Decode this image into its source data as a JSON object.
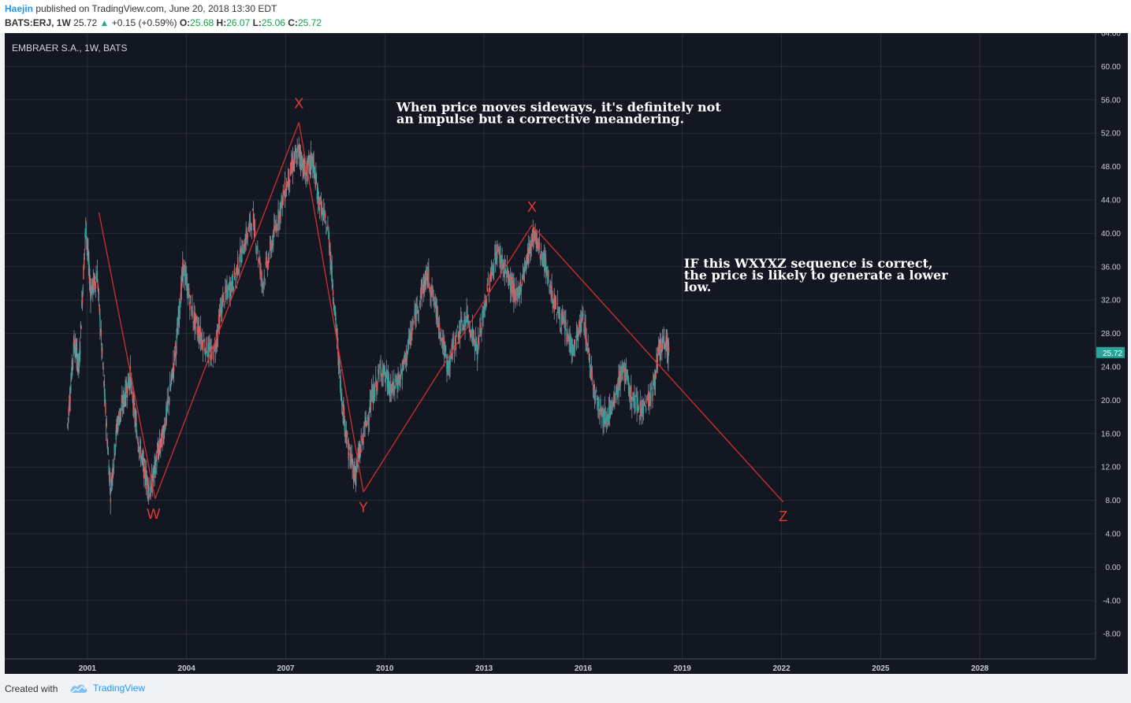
{
  "header": {
    "author": "Haejin",
    "published": "published on TradingView.com, June 20, 2018 13:30 EDT",
    "symbol": "BATS:ERJ, 1W",
    "last": "25.72",
    "change": "+0.15 (+0.59%)",
    "o_label": "O:",
    "o_value": "25.68",
    "h_label": "H:",
    "h_value": "26.07",
    "l_label": "L:",
    "l_value": "25.06",
    "c_label": "C:",
    "c_value": "25.72"
  },
  "footer": {
    "created": "Created with",
    "brand": "TradingView"
  },
  "colors": {
    "background": "#131722",
    "grid": "#2a2e39",
    "line": "#d32f2f",
    "label": "#e53935",
    "up": "#26a69a",
    "down": "#ef5350",
    "price_tag": "#26a69a"
  },
  "chart_data": {
    "type": "line",
    "title": "EMBRAER S.A., 1W, BATS",
    "y_ticks": [
      "64.00",
      "60.00",
      "56.00",
      "52.00",
      "48.00",
      "44.00",
      "40.00",
      "36.00",
      "32.00",
      "28.00",
      "24.00",
      "20.00",
      "16.00",
      "12.00",
      "8.00",
      "4.00",
      "0.00",
      "-4.00",
      "-8.00"
    ],
    "x_ticks": [
      "2001",
      "2004",
      "2007",
      "2010",
      "2013",
      "2016",
      "2019",
      "2022",
      "2025",
      "2028"
    ],
    "ylim": [
      -11,
      64
    ],
    "xlim": [
      1998.5,
      2031.5
    ],
    "last_price": "25.72",
    "price_series": [
      {
        "x": 2000.4,
        "y": 17
      },
      {
        "x": 2000.6,
        "y": 27
      },
      {
        "x": 2000.75,
        "y": 24
      },
      {
        "x": 2000.95,
        "y": 41
      },
      {
        "x": 2001.1,
        "y": 33
      },
      {
        "x": 2001.3,
        "y": 35
      },
      {
        "x": 2001.5,
        "y": 22
      },
      {
        "x": 2001.7,
        "y": 9
      },
      {
        "x": 2001.9,
        "y": 17
      },
      {
        "x": 2002.1,
        "y": 20
      },
      {
        "x": 2002.3,
        "y": 23
      },
      {
        "x": 2002.5,
        "y": 16
      },
      {
        "x": 2002.7,
        "y": 12
      },
      {
        "x": 2002.9,
        "y": 9
      },
      {
        "x": 2003.1,
        "y": 13
      },
      {
        "x": 2003.3,
        "y": 16
      },
      {
        "x": 2003.5,
        "y": 21
      },
      {
        "x": 2003.7,
        "y": 27
      },
      {
        "x": 2003.9,
        "y": 36
      },
      {
        "x": 2004.2,
        "y": 30
      },
      {
        "x": 2004.5,
        "y": 27
      },
      {
        "x": 2004.8,
        "y": 25
      },
      {
        "x": 2005.1,
        "y": 32
      },
      {
        "x": 2005.4,
        "y": 34
      },
      {
        "x": 2005.7,
        "y": 38
      },
      {
        "x": 2006.0,
        "y": 42
      },
      {
        "x": 2006.3,
        "y": 34
      },
      {
        "x": 2006.6,
        "y": 39
      },
      {
        "x": 2006.9,
        "y": 44
      },
      {
        "x": 2007.2,
        "y": 48
      },
      {
        "x": 2007.4,
        "y": 50
      },
      {
        "x": 2007.6,
        "y": 47
      },
      {
        "x": 2007.8,
        "y": 49
      },
      {
        "x": 2008.0,
        "y": 44
      },
      {
        "x": 2008.3,
        "y": 40
      },
      {
        "x": 2008.5,
        "y": 30
      },
      {
        "x": 2008.7,
        "y": 20
      },
      {
        "x": 2008.9,
        "y": 14
      },
      {
        "x": 2009.1,
        "y": 11
      },
      {
        "x": 2009.3,
        "y": 15
      },
      {
        "x": 2009.6,
        "y": 20
      },
      {
        "x": 2009.9,
        "y": 24
      },
      {
        "x": 2010.2,
        "y": 21
      },
      {
        "x": 2010.5,
        "y": 23
      },
      {
        "x": 2010.8,
        "y": 28
      },
      {
        "x": 2011.1,
        "y": 33
      },
      {
        "x": 2011.3,
        "y": 35
      },
      {
        "x": 2011.6,
        "y": 30
      },
      {
        "x": 2011.9,
        "y": 24
      },
      {
        "x": 2012.2,
        "y": 28
      },
      {
        "x": 2012.5,
        "y": 30
      },
      {
        "x": 2012.8,
        "y": 26
      },
      {
        "x": 2013.1,
        "y": 33
      },
      {
        "x": 2013.4,
        "y": 38
      },
      {
        "x": 2013.7,
        "y": 35
      },
      {
        "x": 2014.0,
        "y": 32
      },
      {
        "x": 2014.3,
        "y": 37
      },
      {
        "x": 2014.5,
        "y": 40
      },
      {
        "x": 2014.8,
        "y": 37
      },
      {
        "x": 2015.1,
        "y": 32
      },
      {
        "x": 2015.4,
        "y": 29
      },
      {
        "x": 2015.7,
        "y": 26
      },
      {
        "x": 2016.0,
        "y": 30
      },
      {
        "x": 2016.3,
        "y": 22
      },
      {
        "x": 2016.6,
        "y": 18
      },
      {
        "x": 2016.9,
        "y": 19
      },
      {
        "x": 2017.2,
        "y": 24
      },
      {
        "x": 2017.5,
        "y": 20
      },
      {
        "x": 2017.8,
        "y": 19
      },
      {
        "x": 2018.1,
        "y": 21
      },
      {
        "x": 2018.3,
        "y": 26
      },
      {
        "x": 2018.5,
        "y": 27
      },
      {
        "x": 2018.6,
        "y": 25.72
      }
    ],
    "wave_path": [
      {
        "x": 2001.35,
        "y": 42.5
      },
      {
        "x": 2003.05,
        "y": 8.2
      },
      {
        "x": 2007.4,
        "y": 53.3
      },
      {
        "x": 2009.35,
        "y": 9.0
      },
      {
        "x": 2014.45,
        "y": 41.0
      },
      {
        "x": 2022.05,
        "y": 7.8
      }
    ],
    "wave_labels": [
      {
        "text": "X",
        "x": 2007.4,
        "y": 55.0
      },
      {
        "text": "W",
        "x": 2003.0,
        "y": 5.8
      },
      {
        "text": "Y",
        "x": 2009.35,
        "y": 6.6
      },
      {
        "text": "X",
        "x": 2014.45,
        "y": 42.6
      },
      {
        "text": "Z",
        "x": 2022.05,
        "y": 5.5
      }
    ],
    "annotations": [
      {
        "lines": [
          "When price moves sideways, it's definitely not",
          "an impulse but a corrective meandering."
        ],
        "x": 2010.35,
        "y": 54.6
      },
      {
        "lines": [
          "IF this WXYXZ sequence is correct,",
          "the price is likely to generate a lower",
          "low."
        ],
        "x": 2019.05,
        "y": 35.9
      }
    ]
  }
}
